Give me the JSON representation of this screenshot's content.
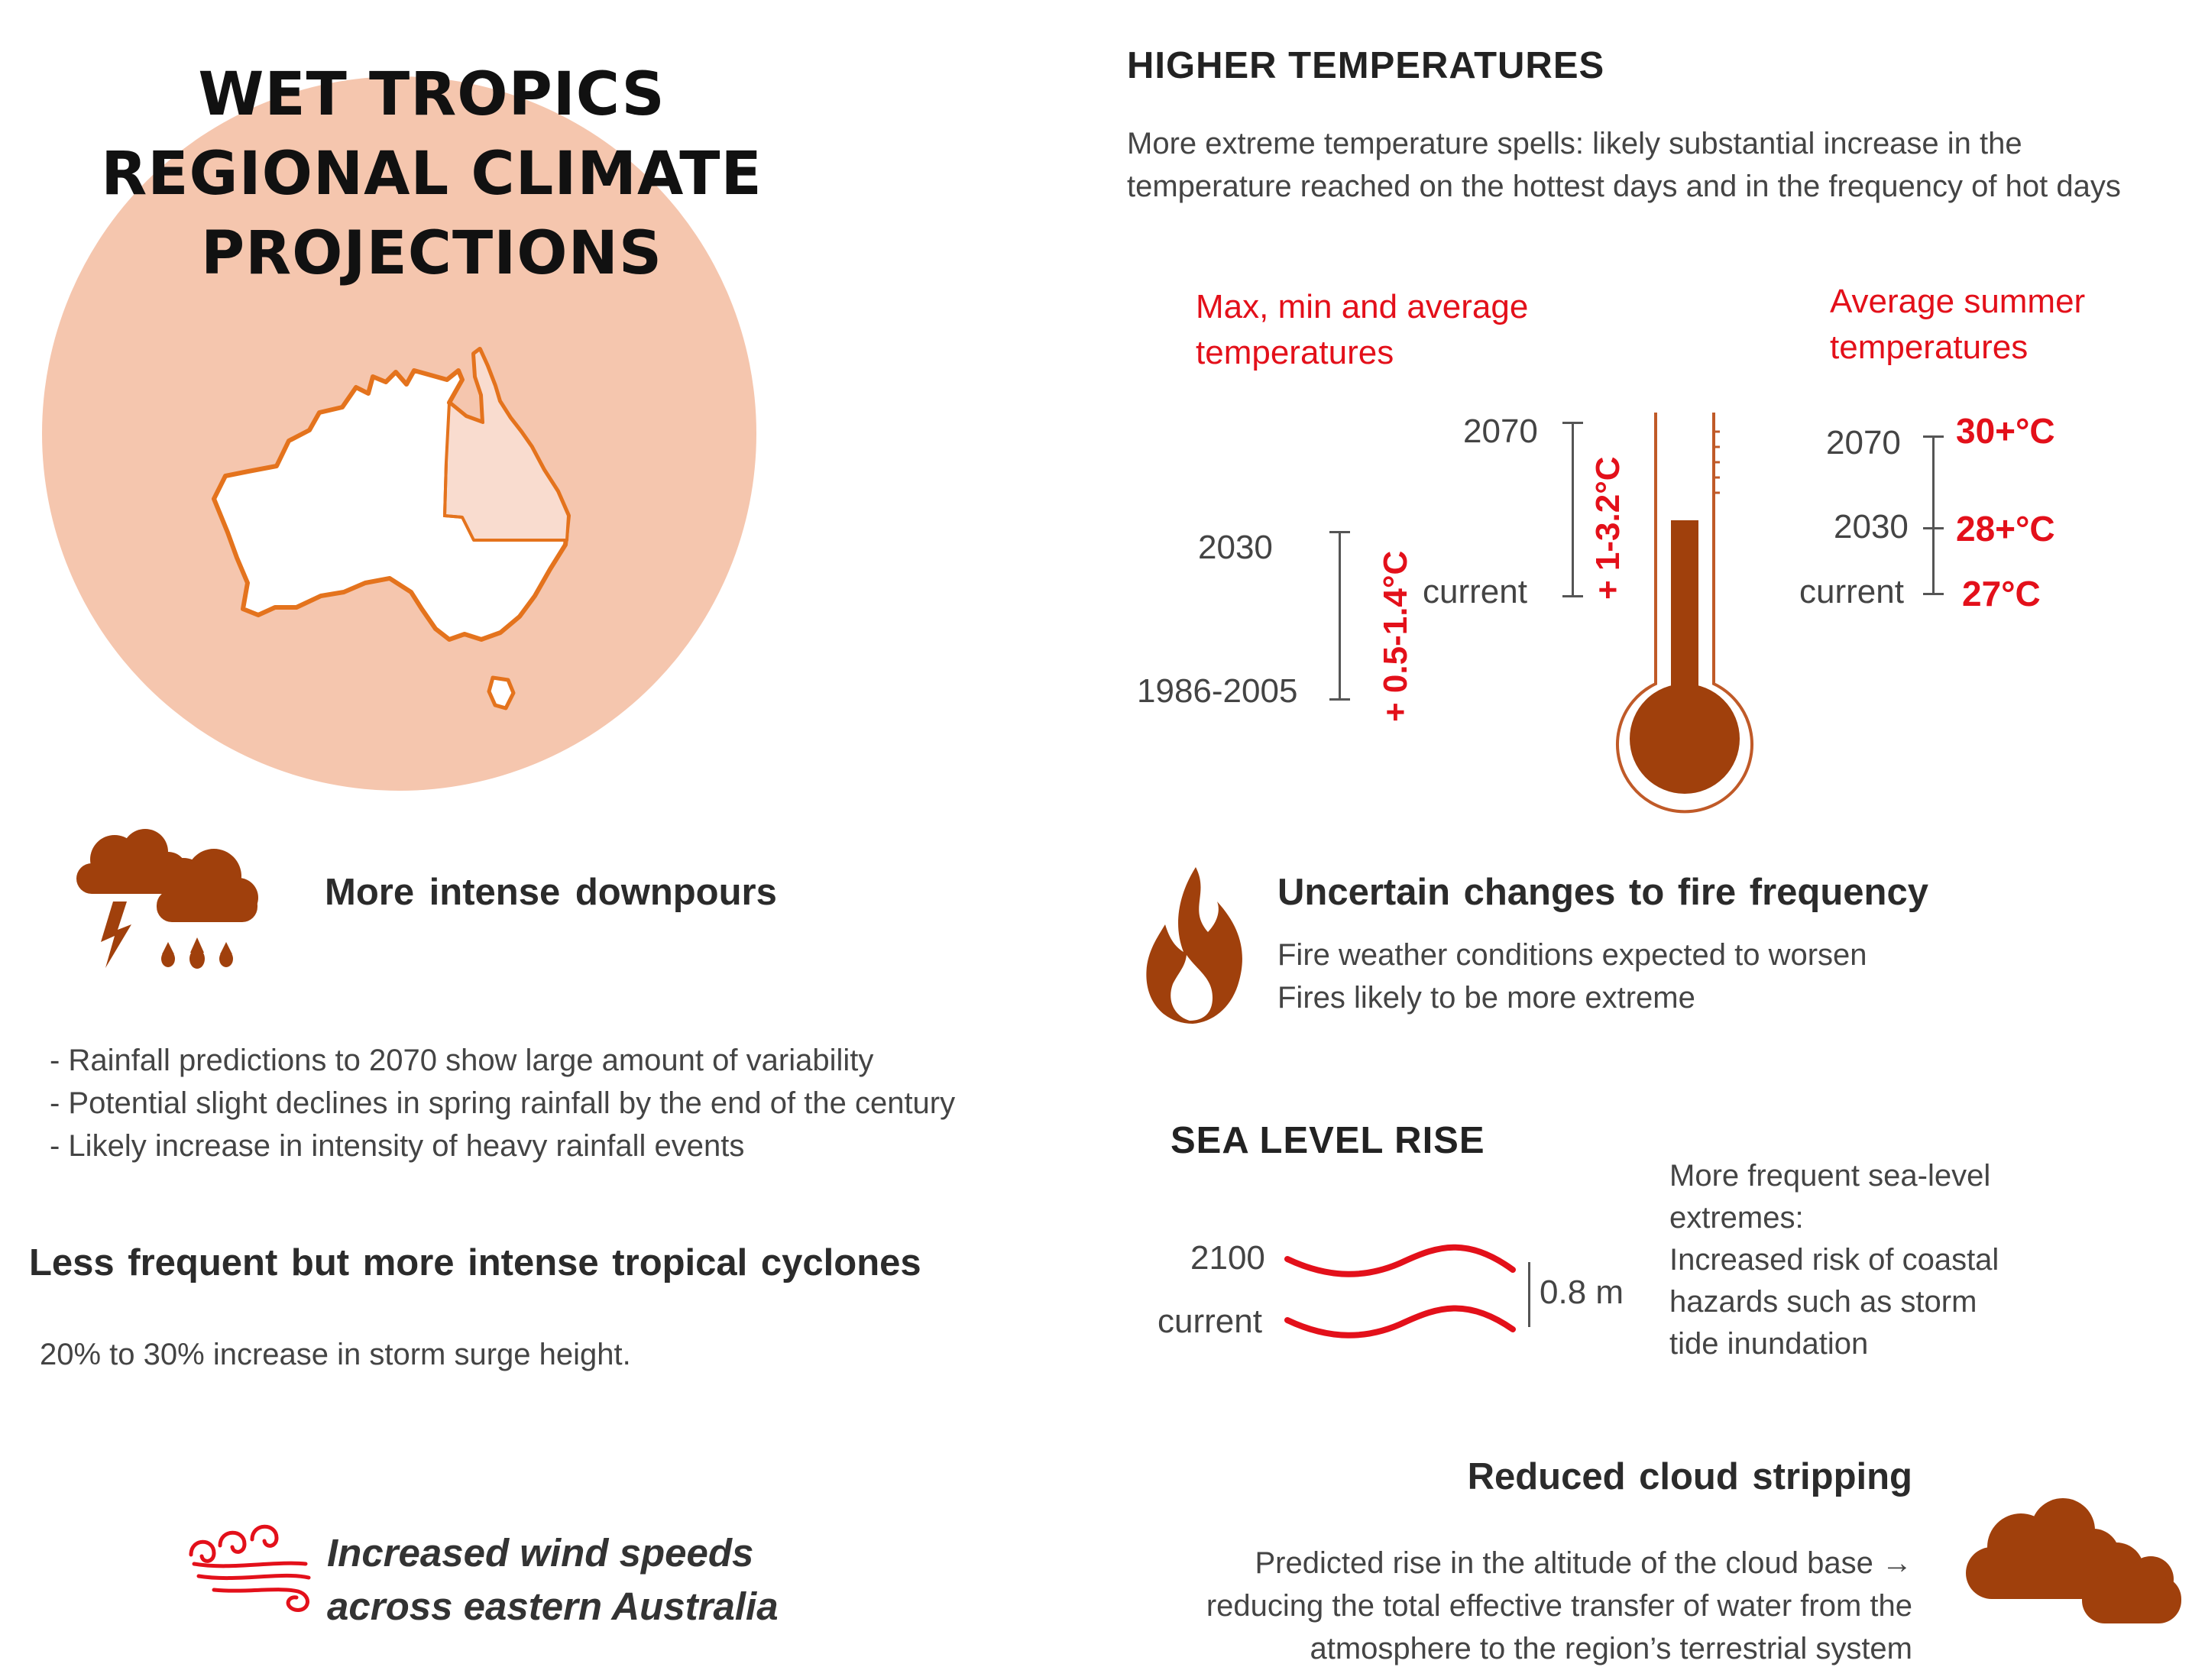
{
  "title": {
    "line1": "WET TROPICS",
    "line2": "REGIONAL CLIMATE",
    "line3": "PROJECTIONS"
  },
  "colors": {
    "accent_brown": "#a0400c",
    "accent_red": "#e3101a",
    "circle_fill": "#f5c6ae",
    "map_outline": "#e4731d"
  },
  "icons": {
    "map": "australia-map-icon",
    "storm": "storm-cloud-icon",
    "fire": "fire-icon",
    "wind": "wind-icon",
    "cloud": "cloud-icon",
    "thermometer": "thermometer-icon",
    "waves": "wave-icon"
  },
  "downpours": {
    "heading": "More intense downpours",
    "bullets": [
      "- Rainfall predictions to 2070 show large amount of variability",
      "- Potential slight declines in spring rainfall by the end of the century",
      "- Likely increase in intensity of heavy  rainfall events"
    ]
  },
  "cyclones": {
    "heading": "Less frequent but more intense tropical cyclones",
    "text": "20% to 30% increase in storm surge height."
  },
  "wind": {
    "line1": "Increased wind speeds",
    "line2": "across eastern Australia"
  },
  "temperatures": {
    "heading": "HIGHER TEMPERATURES",
    "intro1": "More extreme temperature spells: likely substantial increase in the",
    "intro2": "temperature reached on the hottest days and in the frequency of hot days",
    "max_min_title1": "Max, min and average",
    "max_min_title2": "temperatures",
    "summer_title1": "Average summer",
    "summer_title2": "temperatures",
    "label_2030": "2030",
    "label_1986": "1986-2005",
    "change_2030": "+ 0.5-1.4°C",
    "label_2070": "2070",
    "label_current": "current",
    "change_2070": "+ 1-3.2°C",
    "summer": [
      {
        "label": "2070",
        "value": "30+°C"
      },
      {
        "label": "2030",
        "value": "28+°C"
      },
      {
        "label": "current",
        "value": "27°C"
      }
    ]
  },
  "fire": {
    "heading": "Uncertain changes to fire frequency",
    "line1": "Fire weather conditions expected to worsen",
    "line2": "Fires likely to be more extreme"
  },
  "sea": {
    "heading": "SEA LEVEL RISE",
    "label_2100": "2100",
    "label_current": "current",
    "rise": "0.8 m",
    "desc": [
      "More frequent sea-level",
      "extremes:",
      "Increased risk of coastal",
      "hazards such as storm",
      "tide inundation"
    ]
  },
  "cloud": {
    "heading": "Reduced cloud stripping",
    "lines": [
      "Predicted rise in the altitude of the cloud base →",
      "reducing the total effective transfer of water from the",
      "atmosphere to the region’s terrestrial system"
    ]
  }
}
